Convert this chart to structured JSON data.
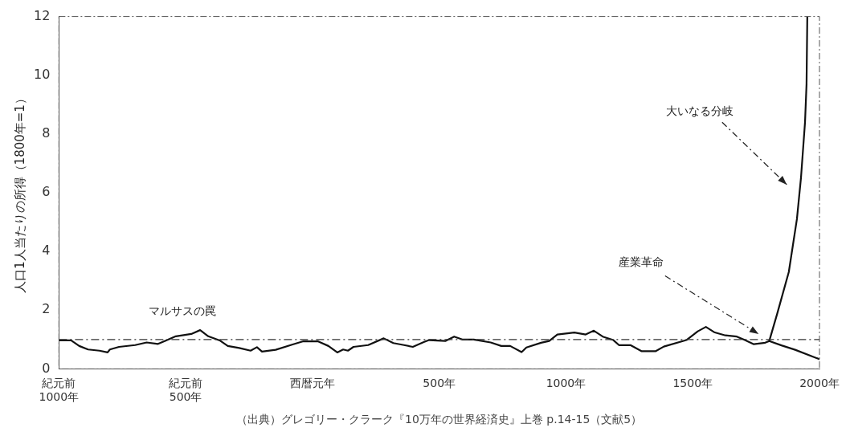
{
  "chart_data": {
    "type": "line",
    "ylabel": "人口1人当たりの所得（1800年=1）",
    "xlim": [
      -1000,
      2000
    ],
    "xticks": [
      {
        "value": -1000,
        "label": "紀元前\n1000年"
      },
      {
        "value": -500,
        "label": "紀元前\n500年"
      },
      {
        "value": 0,
        "label": "西暦元年"
      },
      {
        "value": 500,
        "label": "500年"
      },
      {
        "value": 1000,
        "label": "1000年"
      },
      {
        "value": 1500,
        "label": "1500年"
      },
      {
        "value": 2000,
        "label": "2000年"
      }
    ],
    "ylim": [
      0,
      12
    ],
    "yticks": [
      0,
      2,
      4,
      6,
      8,
      10,
      12
    ],
    "grid": false,
    "legend": false,
    "marker": "none",
    "line_style": "solid",
    "series": [
      {
        "color": "#111111",
        "x": [
          -1000,
          -952,
          -920,
          -885,
          -840,
          -808,
          -799,
          -763,
          -699,
          -654,
          -609,
          -577,
          -539,
          -478,
          -443,
          -411,
          -366,
          -334,
          -289,
          -244,
          -219,
          -199,
          -145,
          -78,
          -36,
          21,
          63,
          98,
          121,
          140,
          162,
          220,
          281,
          319,
          361,
          396,
          441,
          460,
          524,
          559,
          591,
          636,
          703,
          745,
          780,
          825,
          844,
          902,
          934,
          966,
          1033,
          1078,
          1110,
          1145,
          1187,
          1209,
          1254,
          1299,
          1353,
          1386,
          1475,
          1520,
          1552,
          1587,
          1629,
          1674,
          1706,
          1741,
          1786,
          1802
        ],
        "values": [
          0.97,
          0.97,
          0.78,
          0.66,
          0.62,
          0.56,
          0.66,
          0.75,
          0.81,
          0.9,
          0.85,
          0.97,
          1.11,
          1.19,
          1.32,
          1.11,
          0.97,
          0.78,
          0.71,
          0.62,
          0.74,
          0.59,
          0.65,
          0.83,
          0.94,
          0.94,
          0.78,
          0.56,
          0.66,
          0.62,
          0.75,
          0.81,
          1.04,
          0.88,
          0.81,
          0.75,
          0.92,
          0.98,
          0.95,
          1.1,
          1.0,
          1.0,
          0.9,
          0.78,
          0.78,
          0.57,
          0.73,
          0.89,
          0.95,
          1.17,
          1.24,
          1.17,
          1.3,
          1.1,
          0.98,
          0.81,
          0.81,
          0.6,
          0.6,
          0.76,
          0.98,
          1.28,
          1.43,
          1.24,
          1.14,
          1.1,
          0.98,
          0.84,
          0.89,
          0.95
        ]
      },
      {
        "color": "#111111",
        "x": [
          1802,
          1834,
          1879,
          1911,
          1927,
          1943,
          1949,
          1952
        ],
        "values": [
          0.95,
          1.9,
          3.3,
          5.1,
          6.5,
          8.4,
          9.7,
          12
        ]
      },
      {
        "color": "#111111",
        "x": [
          1802,
          1850,
          1904,
          2000
        ],
        "values": [
          0.95,
          0.8,
          0.65,
          0.33
        ]
      }
    ],
    "ref_lines": [
      {
        "axis": "y",
        "value": 1,
        "line_style": "dashed",
        "color": "#333333"
      }
    ],
    "annotations": [
      "マルサスの罠",
      "産業革命",
      "大いなる分岐",
      "（出典）グレゴリー・クラーク『10万年の世界経済史』上巻 p.14-15（文献5）"
    ]
  }
}
